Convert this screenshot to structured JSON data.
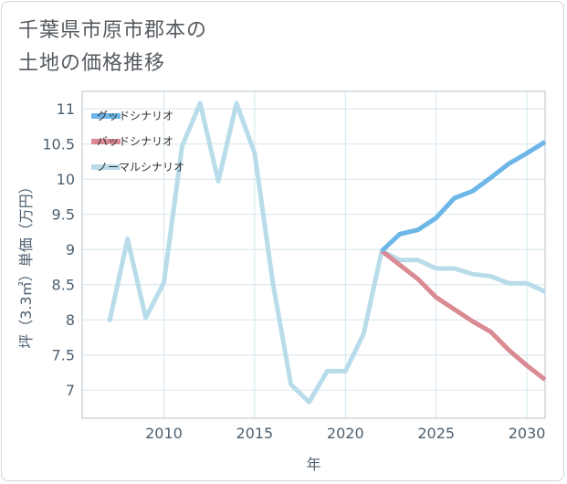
{
  "title_line1": "千葉県市原市郡本の",
  "title_line2": "土地の価格推移",
  "chart_data": {
    "type": "line",
    "xlabel": "年",
    "ylabel": "坪（3.3㎡）単価（万円）",
    "xlim": [
      2005.5,
      2031
    ],
    "ylim": [
      6.6,
      11.25
    ],
    "x_ticks": [
      2010,
      2015,
      2020,
      2025,
      2030
    ],
    "y_ticks": [
      7,
      7.5,
      8,
      8.5,
      9,
      9.5,
      10,
      10.5,
      11
    ],
    "x_tick_labels": [
      "2010",
      "2015",
      "2020",
      "2025",
      "2030"
    ],
    "y_tick_labels": [
      "7",
      "7.5",
      "8",
      "8.5",
      "9",
      "9.5",
      "10",
      "10.5",
      "11"
    ],
    "grid": true,
    "legend_position": "top-left",
    "series": [
      {
        "name": "グッドシナリオ",
        "color": "#6cb6e8",
        "x": [
          2022,
          2023,
          2024,
          2025,
          2026,
          2027,
          2028,
          2029,
          2030,
          2031
        ],
        "values": [
          8.98,
          9.22,
          9.28,
          9.45,
          9.73,
          9.83,
          10.02,
          10.22,
          10.37,
          10.53
        ]
      },
      {
        "name": "バッドシナリオ",
        "color": "#d98a92",
        "x": [
          2022,
          2023,
          2024,
          2025,
          2026,
          2027,
          2028,
          2029,
          2030,
          2031
        ],
        "values": [
          8.98,
          8.78,
          8.58,
          8.32,
          8.15,
          7.98,
          7.83,
          7.57,
          7.35,
          7.15
        ]
      },
      {
        "name": "ノーマルシナリオ",
        "color": "#b8dcea",
        "x": [
          2007,
          2008,
          2009,
          2010,
          2011,
          2012,
          2013,
          2014,
          2015,
          2016,
          2017,
          2018,
          2019,
          2020,
          2021,
          2022,
          2023,
          2024,
          2025,
          2026,
          2027,
          2028,
          2029,
          2030,
          2031
        ],
        "values": [
          7.97,
          9.15,
          8.03,
          8.53,
          10.47,
          11.08,
          9.97,
          11.08,
          10.37,
          8.53,
          7.08,
          6.83,
          7.27,
          7.27,
          7.8,
          8.98,
          8.85,
          8.85,
          8.73,
          8.73,
          8.65,
          8.62,
          8.52,
          8.52,
          8.4
        ]
      }
    ]
  }
}
